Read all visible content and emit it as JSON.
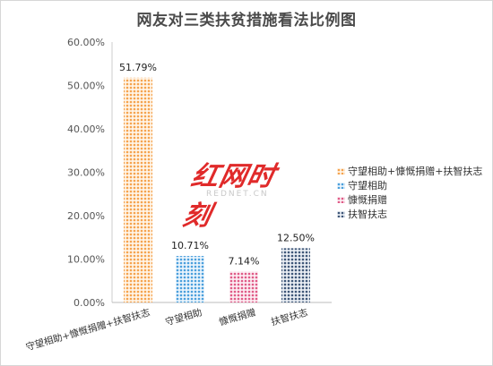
{
  "chart_data": {
    "type": "bar",
    "title": "网友对三类扶贫措施看法比例图",
    "categories": [
      "守望相助+慷慨捐赠+扶智扶志",
      "守望相助",
      "慷慨捐赠",
      "扶智扶志"
    ],
    "values": [
      51.79,
      10.71,
      7.14,
      12.5
    ],
    "data_labels": [
      "51.79%",
      "10.71%",
      "7.14%",
      "12.50%"
    ],
    "colors": [
      "#f5a34e",
      "#4a9fdc",
      "#e05a86",
      "#3d5577"
    ],
    "ylim": [
      0,
      60
    ],
    "yticks": [
      "0.00%",
      "10.00%",
      "20.00%",
      "30.00%",
      "40.00%",
      "50.00%",
      "60.00%"
    ],
    "grid": false,
    "legend_position": "right",
    "legend": [
      "守望相助+慷慨捐赠+扶智扶志",
      "守望相助",
      "慷慨捐赠",
      "扶智扶志"
    ]
  },
  "watermark": {
    "main": "红网时刻",
    "sub": "REDNET.CN"
  }
}
